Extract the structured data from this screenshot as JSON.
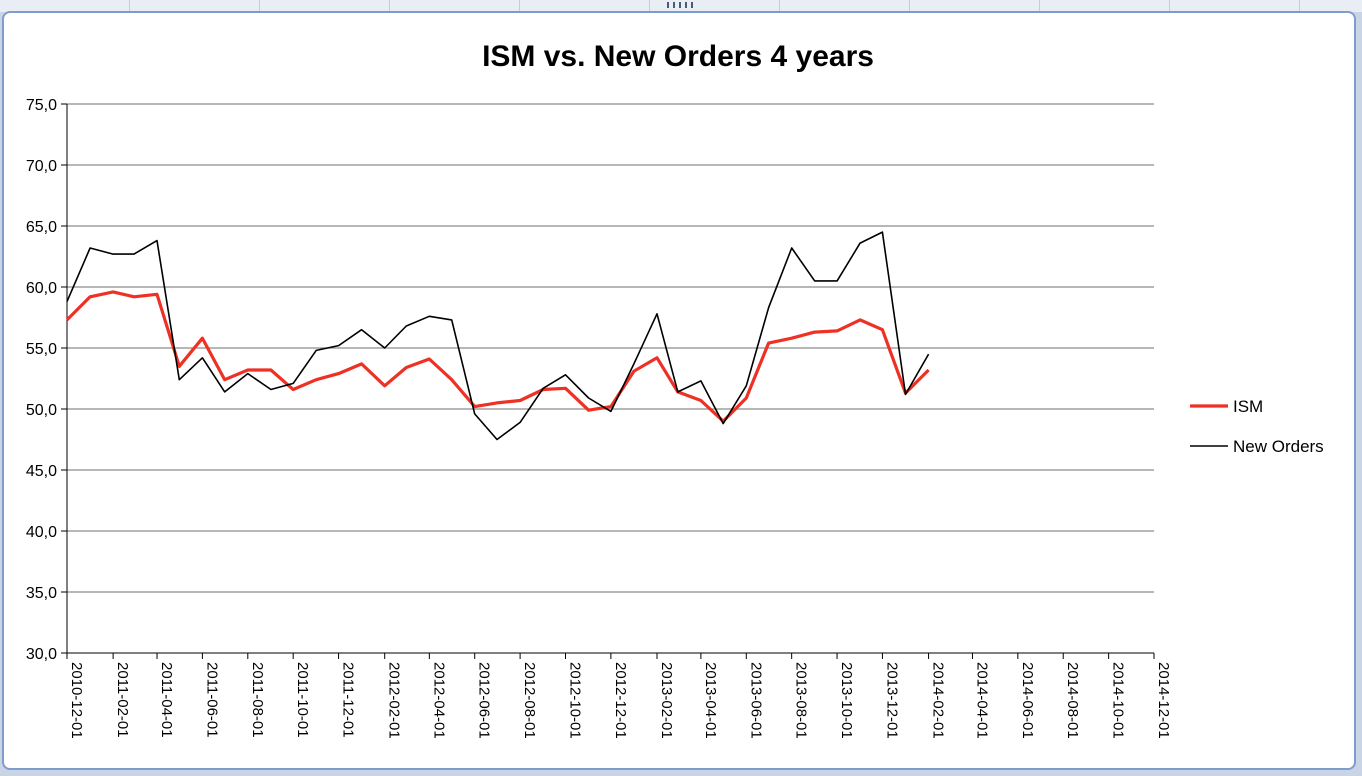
{
  "chart_data": {
    "type": "line",
    "title": "ISM vs. New Orders 4 years",
    "xlabel": "",
    "ylabel": "",
    "ylim": [
      30,
      75
    ],
    "y_ticks": [
      "30,0",
      "35,0",
      "40,0",
      "45,0",
      "50,0",
      "55,0",
      "60,0",
      "65,0",
      "70,0",
      "75,0"
    ],
    "x_range": [
      "2010-12-01",
      "2014-12-01"
    ],
    "x_ticks": [
      "2010-12-01",
      "2011-02-01",
      "2011-04-01",
      "2011-06-01",
      "2011-08-01",
      "2011-10-01",
      "2011-12-01",
      "2012-02-01",
      "2012-04-01",
      "2012-06-01",
      "2012-08-01",
      "2012-10-01",
      "2012-12-01",
      "2013-02-01",
      "2013-04-01",
      "2013-06-01",
      "2013-08-01",
      "2013-10-01",
      "2013-12-01",
      "2014-02-01",
      "2014-04-01",
      "2014-06-01",
      "2014-08-01",
      "2014-10-01",
      "2014-12-01"
    ],
    "x": [
      "2010-12-01",
      "2011-01-01",
      "2011-02-01",
      "2011-03-01",
      "2011-04-01",
      "2011-05-01",
      "2011-06-01",
      "2011-07-01",
      "2011-08-01",
      "2011-09-01",
      "2011-10-01",
      "2011-11-01",
      "2011-12-01",
      "2012-01-01",
      "2012-02-01",
      "2012-03-01",
      "2012-04-01",
      "2012-05-01",
      "2012-06-01",
      "2012-07-01",
      "2012-08-01",
      "2012-09-01",
      "2012-10-01",
      "2012-11-01",
      "2012-12-01",
      "2013-01-01",
      "2013-02-01",
      "2013-03-01",
      "2013-04-01",
      "2013-05-01",
      "2013-06-01",
      "2013-07-01",
      "2013-08-01",
      "2013-09-01",
      "2013-10-01",
      "2013-11-01",
      "2013-12-01",
      "2014-01-01",
      "2014-02-01"
    ],
    "grid": true,
    "legend": "right",
    "series": [
      {
        "name": "ISM",
        "color": "#ee3124",
        "values": [
          57.3,
          59.2,
          59.6,
          59.2,
          59.4,
          53.5,
          55.8,
          52.4,
          53.2,
          53.2,
          51.6,
          52.4,
          52.9,
          53.7,
          51.9,
          53.4,
          54.1,
          52.4,
          50.2,
          50.5,
          50.7,
          51.6,
          51.7,
          49.9,
          50.2,
          53.1,
          54.2,
          51.4,
          50.7,
          49.0,
          50.9,
          55.4,
          55.8,
          56.3,
          56.4,
          57.3,
          56.5,
          51.3,
          53.2
        ]
      },
      {
        "name": "New Orders",
        "color": "#000000",
        "values": [
          58.8,
          63.2,
          62.7,
          62.7,
          63.8,
          52.4,
          54.2,
          51.4,
          52.9,
          51.6,
          52.1,
          54.8,
          55.2,
          56.5,
          55.0,
          56.8,
          57.6,
          57.3,
          49.6,
          47.5,
          48.9,
          51.7,
          52.8,
          50.9,
          49.8,
          53.7,
          57.8,
          51.4,
          52.3,
          48.8,
          51.9,
          58.3,
          63.2,
          60.5,
          60.5,
          63.6,
          64.5,
          51.2,
          54.5
        ]
      }
    ]
  }
}
